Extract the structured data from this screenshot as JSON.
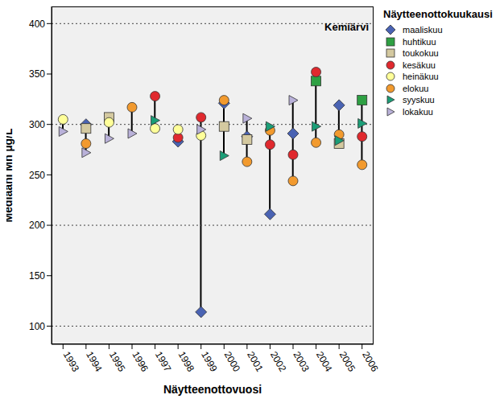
{
  "chart_data": {
    "type": "scatter",
    "title": "Kemiärvi",
    "x_label": "Näytteenottovuosi",
    "y_label": "Mediaani Mn µg/L",
    "legend_title": "Näytteenottokuukausi",
    "legend": "right",
    "grid": false,
    "reference_lines": [
      100,
      200,
      300,
      400
    ],
    "categories": [
      "1993",
      "1994",
      "1995",
      "1996",
      "1997",
      "1998",
      "1999",
      "2000",
      "2001",
      "2002",
      "2003",
      "2004",
      "2005",
      "2006"
    ],
    "ylim": [
      82,
      417
    ],
    "yticks": [
      100,
      150,
      200,
      250,
      300,
      350,
      400
    ],
    "series": [
      {
        "name": "maaliskuu",
        "color": "#4a63b3",
        "marker": "diamond",
        "values": [
          null,
          300,
          null,
          null,
          null,
          283,
          114,
          321,
          288,
          211,
          291,
          null,
          319,
          null
        ]
      },
      {
        "name": "huhtikuu",
        "color": "#2ea043",
        "marker": "square",
        "values": [
          null,
          null,
          null,
          null,
          null,
          null,
          null,
          null,
          null,
          null,
          null,
          343,
          null,
          324
        ]
      },
      {
        "name": "toukokuu",
        "color": "#d4c9a0",
        "marker": "square",
        "values": [
          null,
          296,
          307,
          null,
          null,
          null,
          null,
          298,
          285,
          null,
          null,
          null,
          281,
          null
        ]
      },
      {
        "name": "kesäkuu",
        "color": "#e0292e",
        "marker": "circle",
        "values": [
          null,
          null,
          null,
          null,
          328,
          287,
          307,
          null,
          null,
          280,
          270,
          352,
          null,
          288
        ]
      },
      {
        "name": "heinäkuu",
        "color": "#ffff99",
        "marker": "circle",
        "values": [
          305,
          null,
          302,
          null,
          296,
          295,
          289,
          null,
          null,
          null,
          null,
          null,
          null,
          null
        ]
      },
      {
        "name": "elokuu",
        "color": "#f29a2e",
        "marker": "circle",
        "values": [
          null,
          281,
          null,
          317,
          null,
          null,
          null,
          324,
          263,
          294,
          244,
          282,
          290,
          260
        ]
      },
      {
        "name": "syyskuu",
        "color": "#1b9e77",
        "marker": "triangle-right",
        "values": [
          null,
          null,
          null,
          null,
          304,
          null,
          null,
          269,
          null,
          298,
          null,
          298,
          284,
          301
        ]
      },
      {
        "name": "lokakuu",
        "color": "#b9b1d9",
        "marker": "triangle-right",
        "values": [
          293,
          272,
          286,
          291,
          null,
          null,
          295,
          null,
          306,
          null,
          324,
          null,
          null,
          null
        ]
      }
    ]
  }
}
